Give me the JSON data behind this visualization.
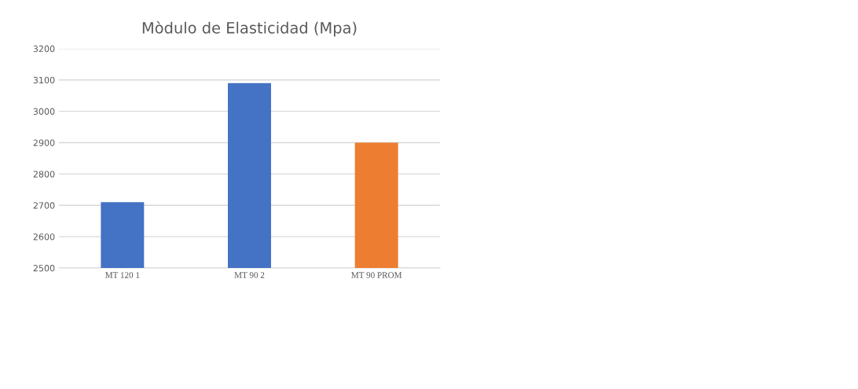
{
  "chart_data": {
    "type": "bar",
    "title": "Mòdulo de Elasticidad (Mpa)",
    "categories": [
      "MT 120 1",
      "MT 90 2",
      "MT 90 PROM"
    ],
    "values": [
      2710,
      3090,
      2900
    ],
    "colors": [
      "#4472c4",
      "#4472c4",
      "#ed7d31"
    ],
    "ylim": [
      2500,
      3200
    ],
    "yticks": [
      2500,
      2600,
      2700,
      2800,
      2900,
      3000,
      3100,
      3200
    ],
    "grid": "y"
  }
}
